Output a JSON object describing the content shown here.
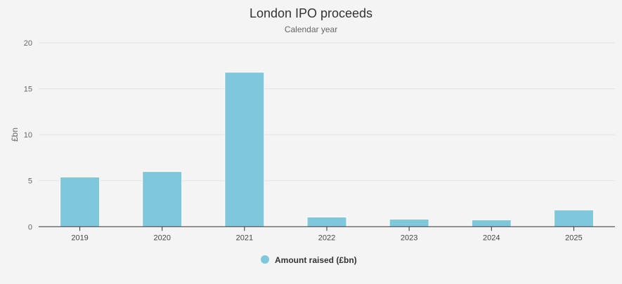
{
  "chart_data": {
    "type": "bar",
    "title": "London IPO proceeds",
    "subtitle": "Calendar year",
    "xlabel": "",
    "ylabel": "£bn",
    "categories": [
      "2019",
      "2020",
      "2021",
      "2022",
      "2023",
      "2024",
      "2025"
    ],
    "series": [
      {
        "name": "Amount raised (£bn)",
        "values": [
          5.4,
          6.0,
          16.8,
          1.05,
          0.82,
          0.74,
          1.82
        ],
        "color": "#7fc8dc"
      }
    ],
    "ylim": [
      0,
      20
    ],
    "yticks": [
      "0",
      "5",
      "10",
      "15",
      "20"
    ],
    "grid": true,
    "legend": "bottom-center"
  }
}
